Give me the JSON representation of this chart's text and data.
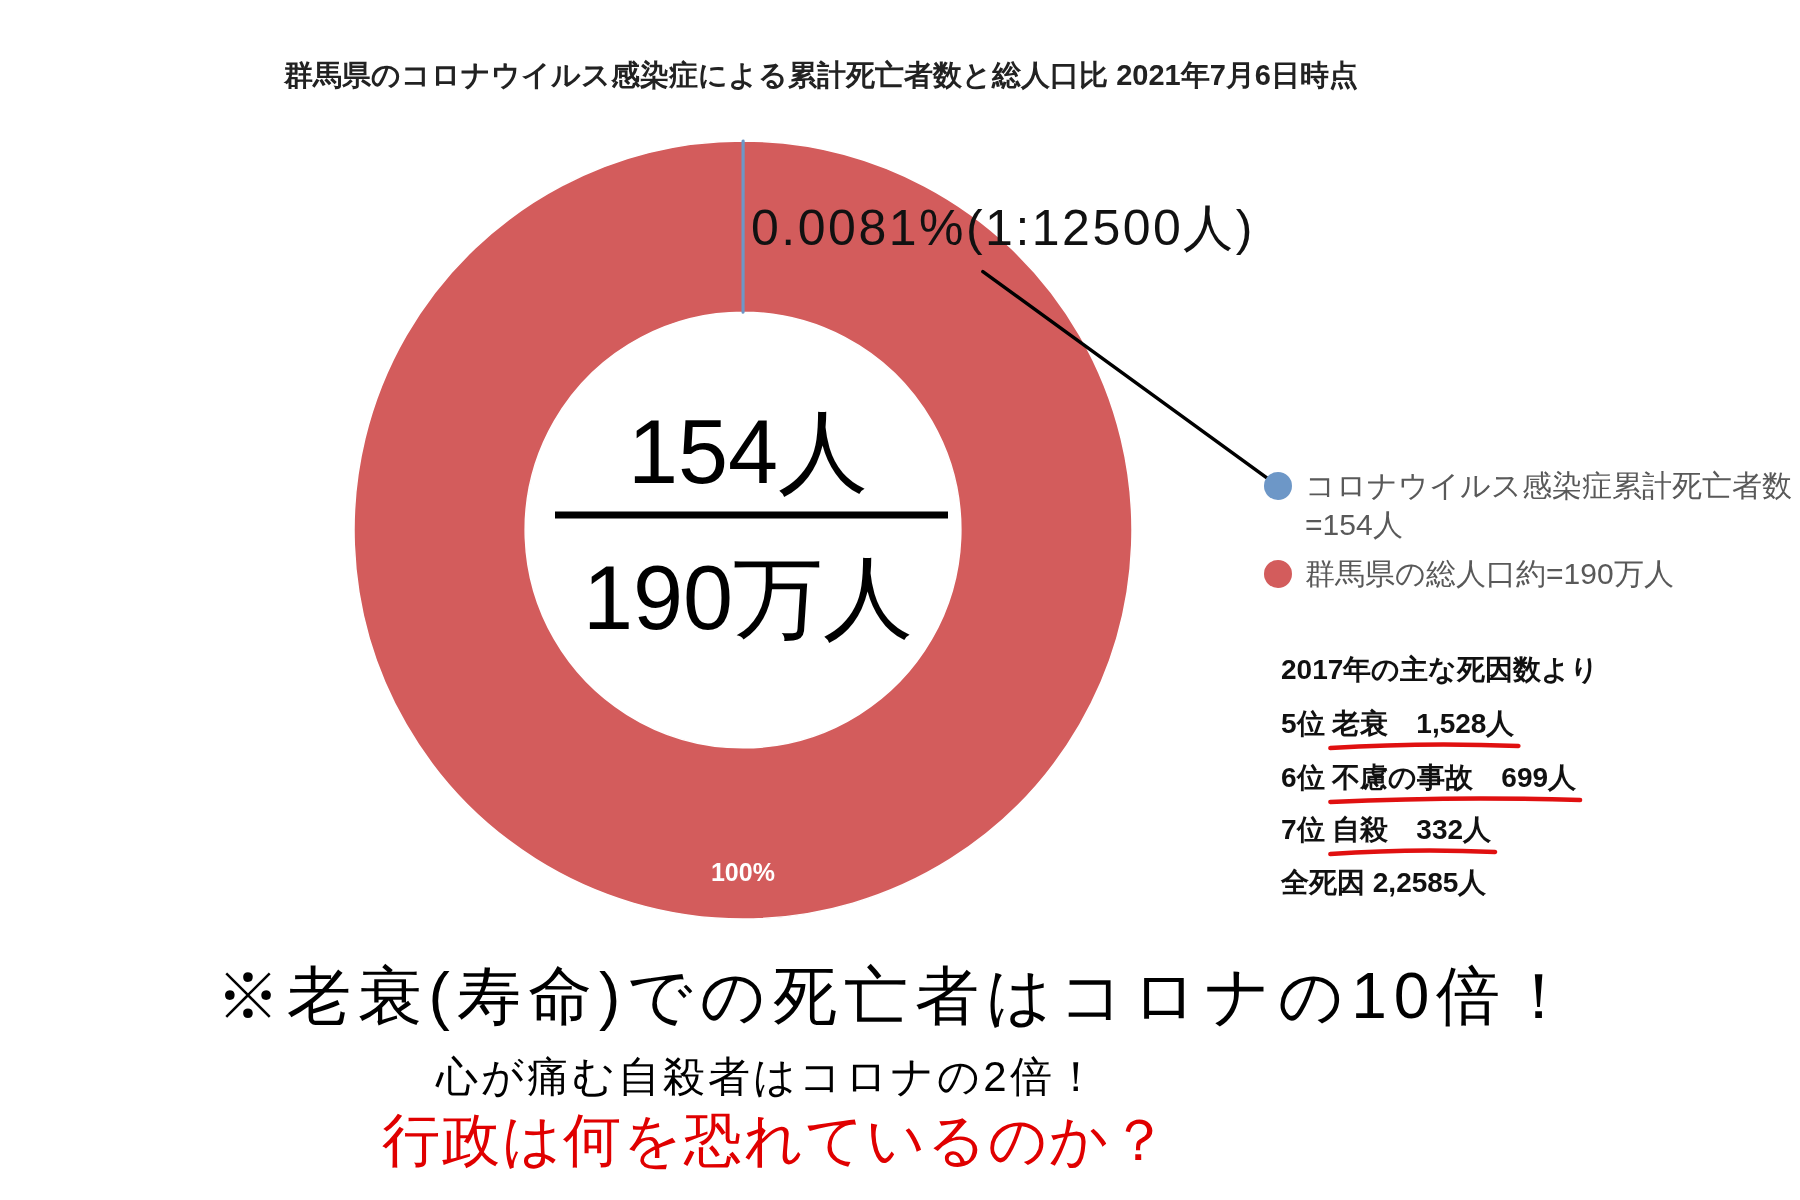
{
  "chart_data": {
    "type": "donut",
    "title": "群馬県のコロナウイルス感染症による累計死亡者数と総人口比 2021年7月6日時点",
    "categories": [
      "コロナウイルス感染症累計死亡者数=154人",
      "群馬県の総人口約=190万人"
    ],
    "values": [
      0.0081,
      100
    ],
    "colors": [
      "#6d97c7",
      "#d35c5c"
    ],
    "value_labels": [
      "0.0081%(1:12500人)",
      "100%"
    ],
    "legend": "right",
    "annotations": [
      "154人",
      "190万人",
      "2017年の主な死因数より",
      "5位 老衰　1,528人",
      "6位 不慮の事故　699人",
      "7位 自殺　332人",
      "全死因 2,2585人",
      "※老衰(寿命)での死亡者はコロナの10倍！",
      "心が痛む自殺者はコロナの2倍！",
      "行政は何を恐れているのか？"
    ]
  }
}
